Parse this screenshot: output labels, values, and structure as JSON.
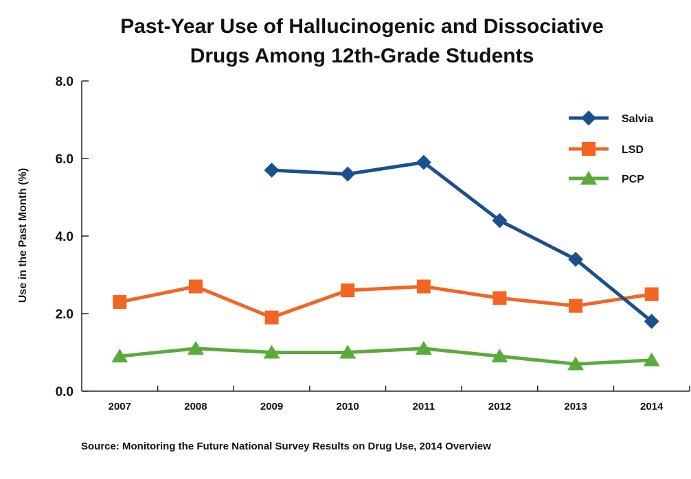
{
  "chart_data": {
    "type": "line",
    "title_lines": [
      "Past-Year Use of Hallucinogenic and Dissociative",
      "Drugs Among 12th-Grade Students"
    ],
    "xlabel": "",
    "ylabel": "Use in the Past Month (%)",
    "categories": [
      "2007",
      "2008",
      "2009",
      "2010",
      "2011",
      "2012",
      "2013",
      "2014"
    ],
    "ylim": [
      0,
      8
    ],
    "yticks": [
      "0.0",
      "2.0",
      "4.0",
      "6.0",
      "8.0"
    ],
    "ytick_values": [
      0,
      2,
      4,
      6,
      8
    ],
    "grid": false,
    "legend_position": "top-right",
    "series": [
      {
        "name": "Salvia",
        "color": "#1c4f8c",
        "marker": "diamond",
        "values": [
          null,
          null,
          5.7,
          5.6,
          5.9,
          4.4,
          3.4,
          1.8
        ]
      },
      {
        "name": "LSD",
        "color": "#f26522",
        "marker": "square",
        "values": [
          2.3,
          2.7,
          1.9,
          2.6,
          2.7,
          2.4,
          2.2,
          2.5
        ]
      },
      {
        "name": "PCP",
        "color": "#5aab3c",
        "marker": "triangle",
        "values": [
          0.9,
          1.1,
          1.0,
          1.0,
          1.1,
          0.9,
          0.7,
          0.8
        ]
      }
    ],
    "source": "Source: Monitoring the Future National Survey Results on Drug Use, 2014 Overview"
  }
}
